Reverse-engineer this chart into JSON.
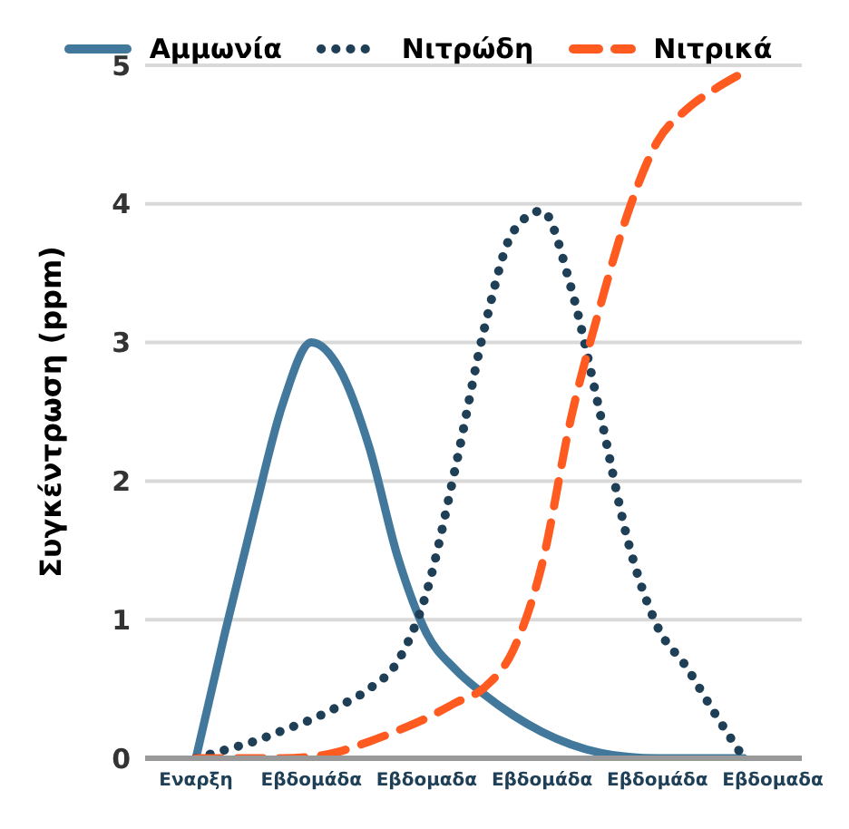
{
  "chart_data": {
    "type": "line",
    "ylabel": "Συγκέντρωση (ppm)",
    "categories": [
      "Εναρξη",
      null,
      null,
      null,
      "Εβδομάδα",
      null,
      null,
      null,
      "Εβδομαδα",
      null,
      null,
      null,
      "Εβδομάδα",
      null,
      null,
      null,
      "Εβδομάδα",
      null,
      null,
      null,
      "Εβδομαδα"
    ],
    "ylim": [
      0,
      5
    ],
    "yticks": [
      0,
      1,
      2,
      3,
      4,
      5
    ],
    "grid": "y",
    "legend": "top",
    "marker": "none",
    "series": [
      {
        "name": "Αμμωνία",
        "color": "#41789b",
        "line_style": "solid",
        "values": [
          0,
          0.9,
          1.75,
          2.55,
          3,
          2.8,
          2.25,
          1.45,
          0.9,
          0.64,
          0.46,
          0.31,
          0.19,
          0.1,
          0.04,
          0.01,
          0,
          0,
          0,
          0,
          null
        ]
      },
      {
        "name": "Νιτρώδη",
        "color": "#1f3f57",
        "line_style": "dotted",
        "values": [
          0,
          0.06,
          0.12,
          0.2,
          0.28,
          0.38,
          0.5,
          0.7,
          1.2,
          2.1,
          3.1,
          3.8,
          3.95,
          3.4,
          2.5,
          1.55,
          0.95,
          0.66,
          0.32,
          0,
          null
        ]
      },
      {
        "name": "Νιτρικά",
        "color": "#ff5a1f",
        "line_style": "dashed",
        "values": [
          0,
          0,
          0,
          0,
          0.01,
          0.05,
          0.12,
          0.2,
          0.29,
          0.4,
          0.51,
          0.78,
          1.4,
          2.45,
          3.25,
          3.95,
          4.45,
          4.68,
          4.83,
          4.95,
          null
        ]
      }
    ]
  }
}
